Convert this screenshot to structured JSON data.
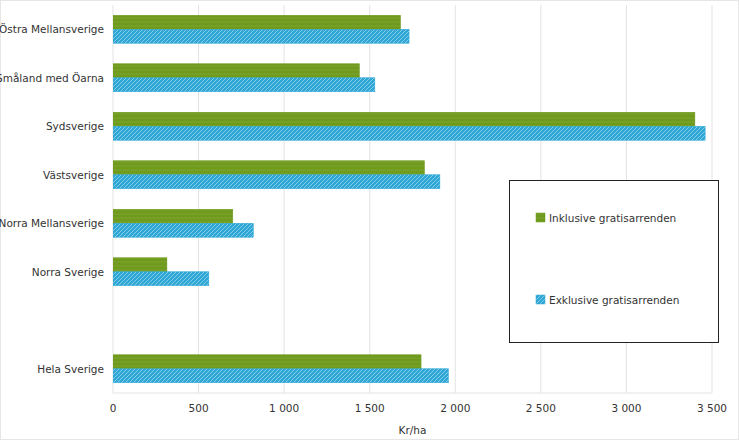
{
  "chart_data": {
    "type": "bar",
    "orientation": "horizontal",
    "categories": [
      "Östra Mellansverige",
      "Småland med Öarna",
      "Sydsverige",
      "Västsverige",
      "Norra Mellansverige",
      "Norra Sverige",
      null,
      "Hela Sverige"
    ],
    "series": [
      {
        "name": "Inklusive gratisarrenden",
        "color": "#6f9a1c",
        "values": [
          1680,
          1440,
          3400,
          1820,
          700,
          315,
          null,
          1800
        ]
      },
      {
        "name": "Exklusive gratisarrenden",
        "color": "#2ea7d6",
        "values": [
          1730,
          1530,
          3460,
          1910,
          820,
          560,
          null,
          1960
        ]
      }
    ],
    "x_label": "Kr/ha",
    "xlim": [
      0,
      3500
    ],
    "xticks": [
      0,
      500,
      {
        "value": 1000,
        "label": "1 000"
      },
      {
        "value": 1500,
        "label": "1 500"
      },
      {
        "value": 2000,
        "label": "2 000"
      },
      {
        "value": 2500,
        "label": "2 500"
      },
      {
        "value": 3000,
        "label": "3 000"
      },
      {
        "value": 3500,
        "label": "3 500"
      }
    ],
    "grid": true,
    "legend": "right"
  }
}
